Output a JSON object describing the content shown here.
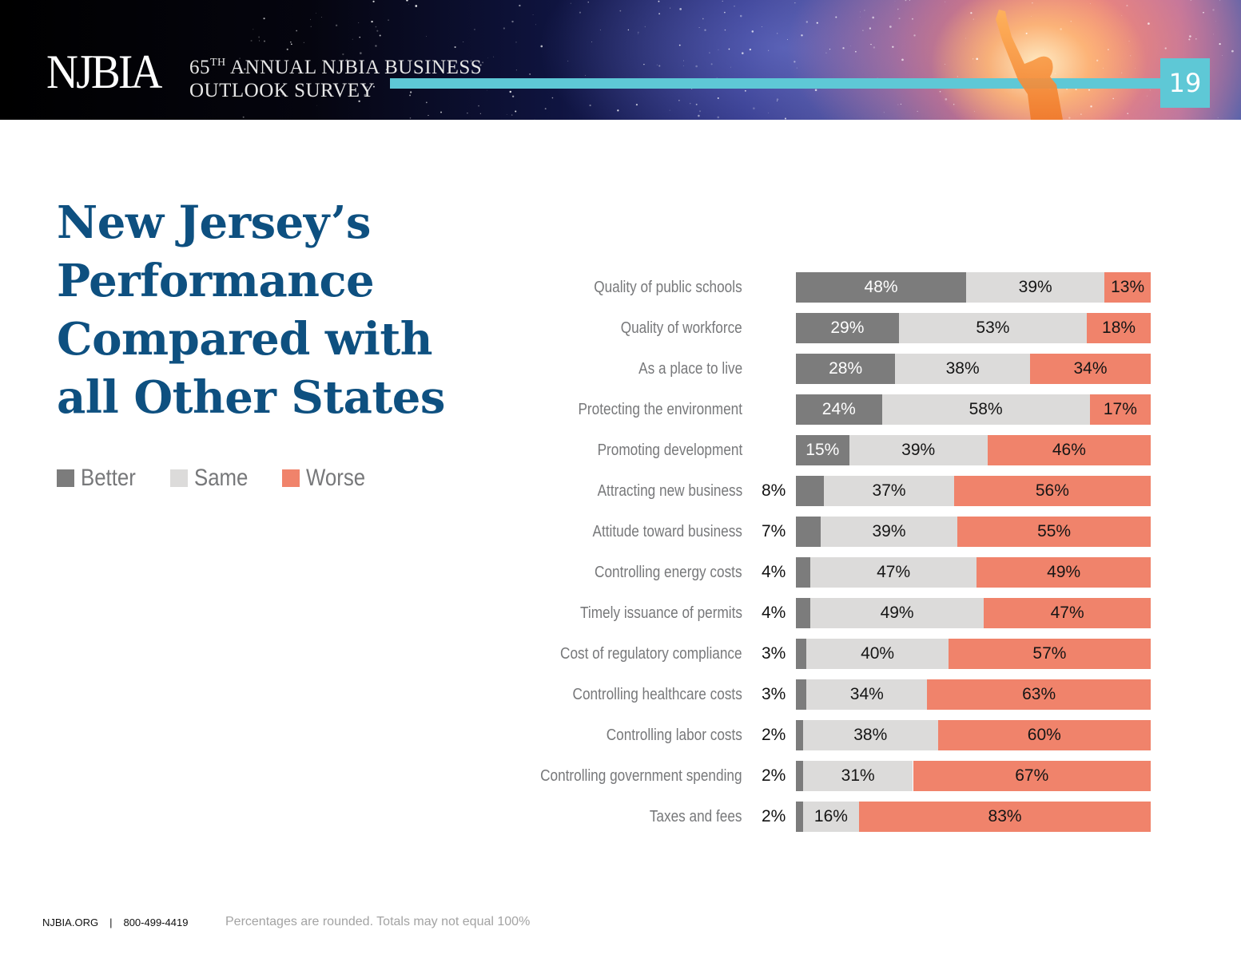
{
  "banner": {
    "logo": "NJBIA",
    "survey_title_number": "65",
    "survey_title_suffix": "TH",
    "survey_title_line1_rest": " ANNUAL NJBIA BUSINESS",
    "survey_title_line2": "OUTLOOK SURVEY",
    "page_number": "19"
  },
  "headline": {
    "lines": [
      "New Jersey’s",
      "Performance",
      "Compared with",
      "all Other States"
    ]
  },
  "colors": {
    "better": "#7c7c7c",
    "same": "#dcdbda",
    "worse": "#f0836b",
    "headline": "#0e5080",
    "accent_teal": "#5ec8d6"
  },
  "legend": {
    "items": [
      {
        "label": "Better",
        "color": "#7c7c7c"
      },
      {
        "label": "Same",
        "color": "#dcdbda"
      },
      {
        "label": "Worse",
        "color": "#f0836b"
      }
    ]
  },
  "chart_data": {
    "type": "bar",
    "orientation": "horizontal",
    "stacked": true,
    "title": "New Jersey’s Performance Compared with all Other States",
    "xlabel": "",
    "ylabel": "",
    "xlim": [
      0,
      100
    ],
    "grid": false,
    "legend_position": "left",
    "value_format": "percent",
    "categories": [
      "Quality of public schools",
      "Quality of workforce",
      "As a place to live",
      "Protecting the environment",
      "Promoting development",
      "Attracting new business",
      "Attitude toward business",
      "Controlling energy costs",
      "Timely issuance of permits",
      "Cost of regulatory compliance",
      "Controlling healthcare costs",
      "Controlling labor costs",
      "Controlling government spending",
      "Taxes and fees"
    ],
    "series": [
      {
        "name": "Better",
        "values": [
          48,
          29,
          28,
          24,
          15,
          8,
          7,
          4,
          4,
          3,
          3,
          2,
          2,
          2
        ]
      },
      {
        "name": "Same",
        "values": [
          39,
          53,
          38,
          58,
          39,
          37,
          39,
          47,
          49,
          40,
          34,
          38,
          31,
          16
        ]
      },
      {
        "name": "Worse",
        "values": [
          13,
          18,
          34,
          17,
          46,
          56,
          55,
          49,
          47,
          57,
          63,
          60,
          67,
          83
        ]
      }
    ],
    "annotations": [
      "Percentages are rounded. Totals may not equal 100%"
    ]
  },
  "footer": {
    "website": "NJBIA.ORG",
    "separator": "|",
    "phone": "800-499-4419",
    "note": "Percentages are rounded. Totals may not equal 100%"
  }
}
